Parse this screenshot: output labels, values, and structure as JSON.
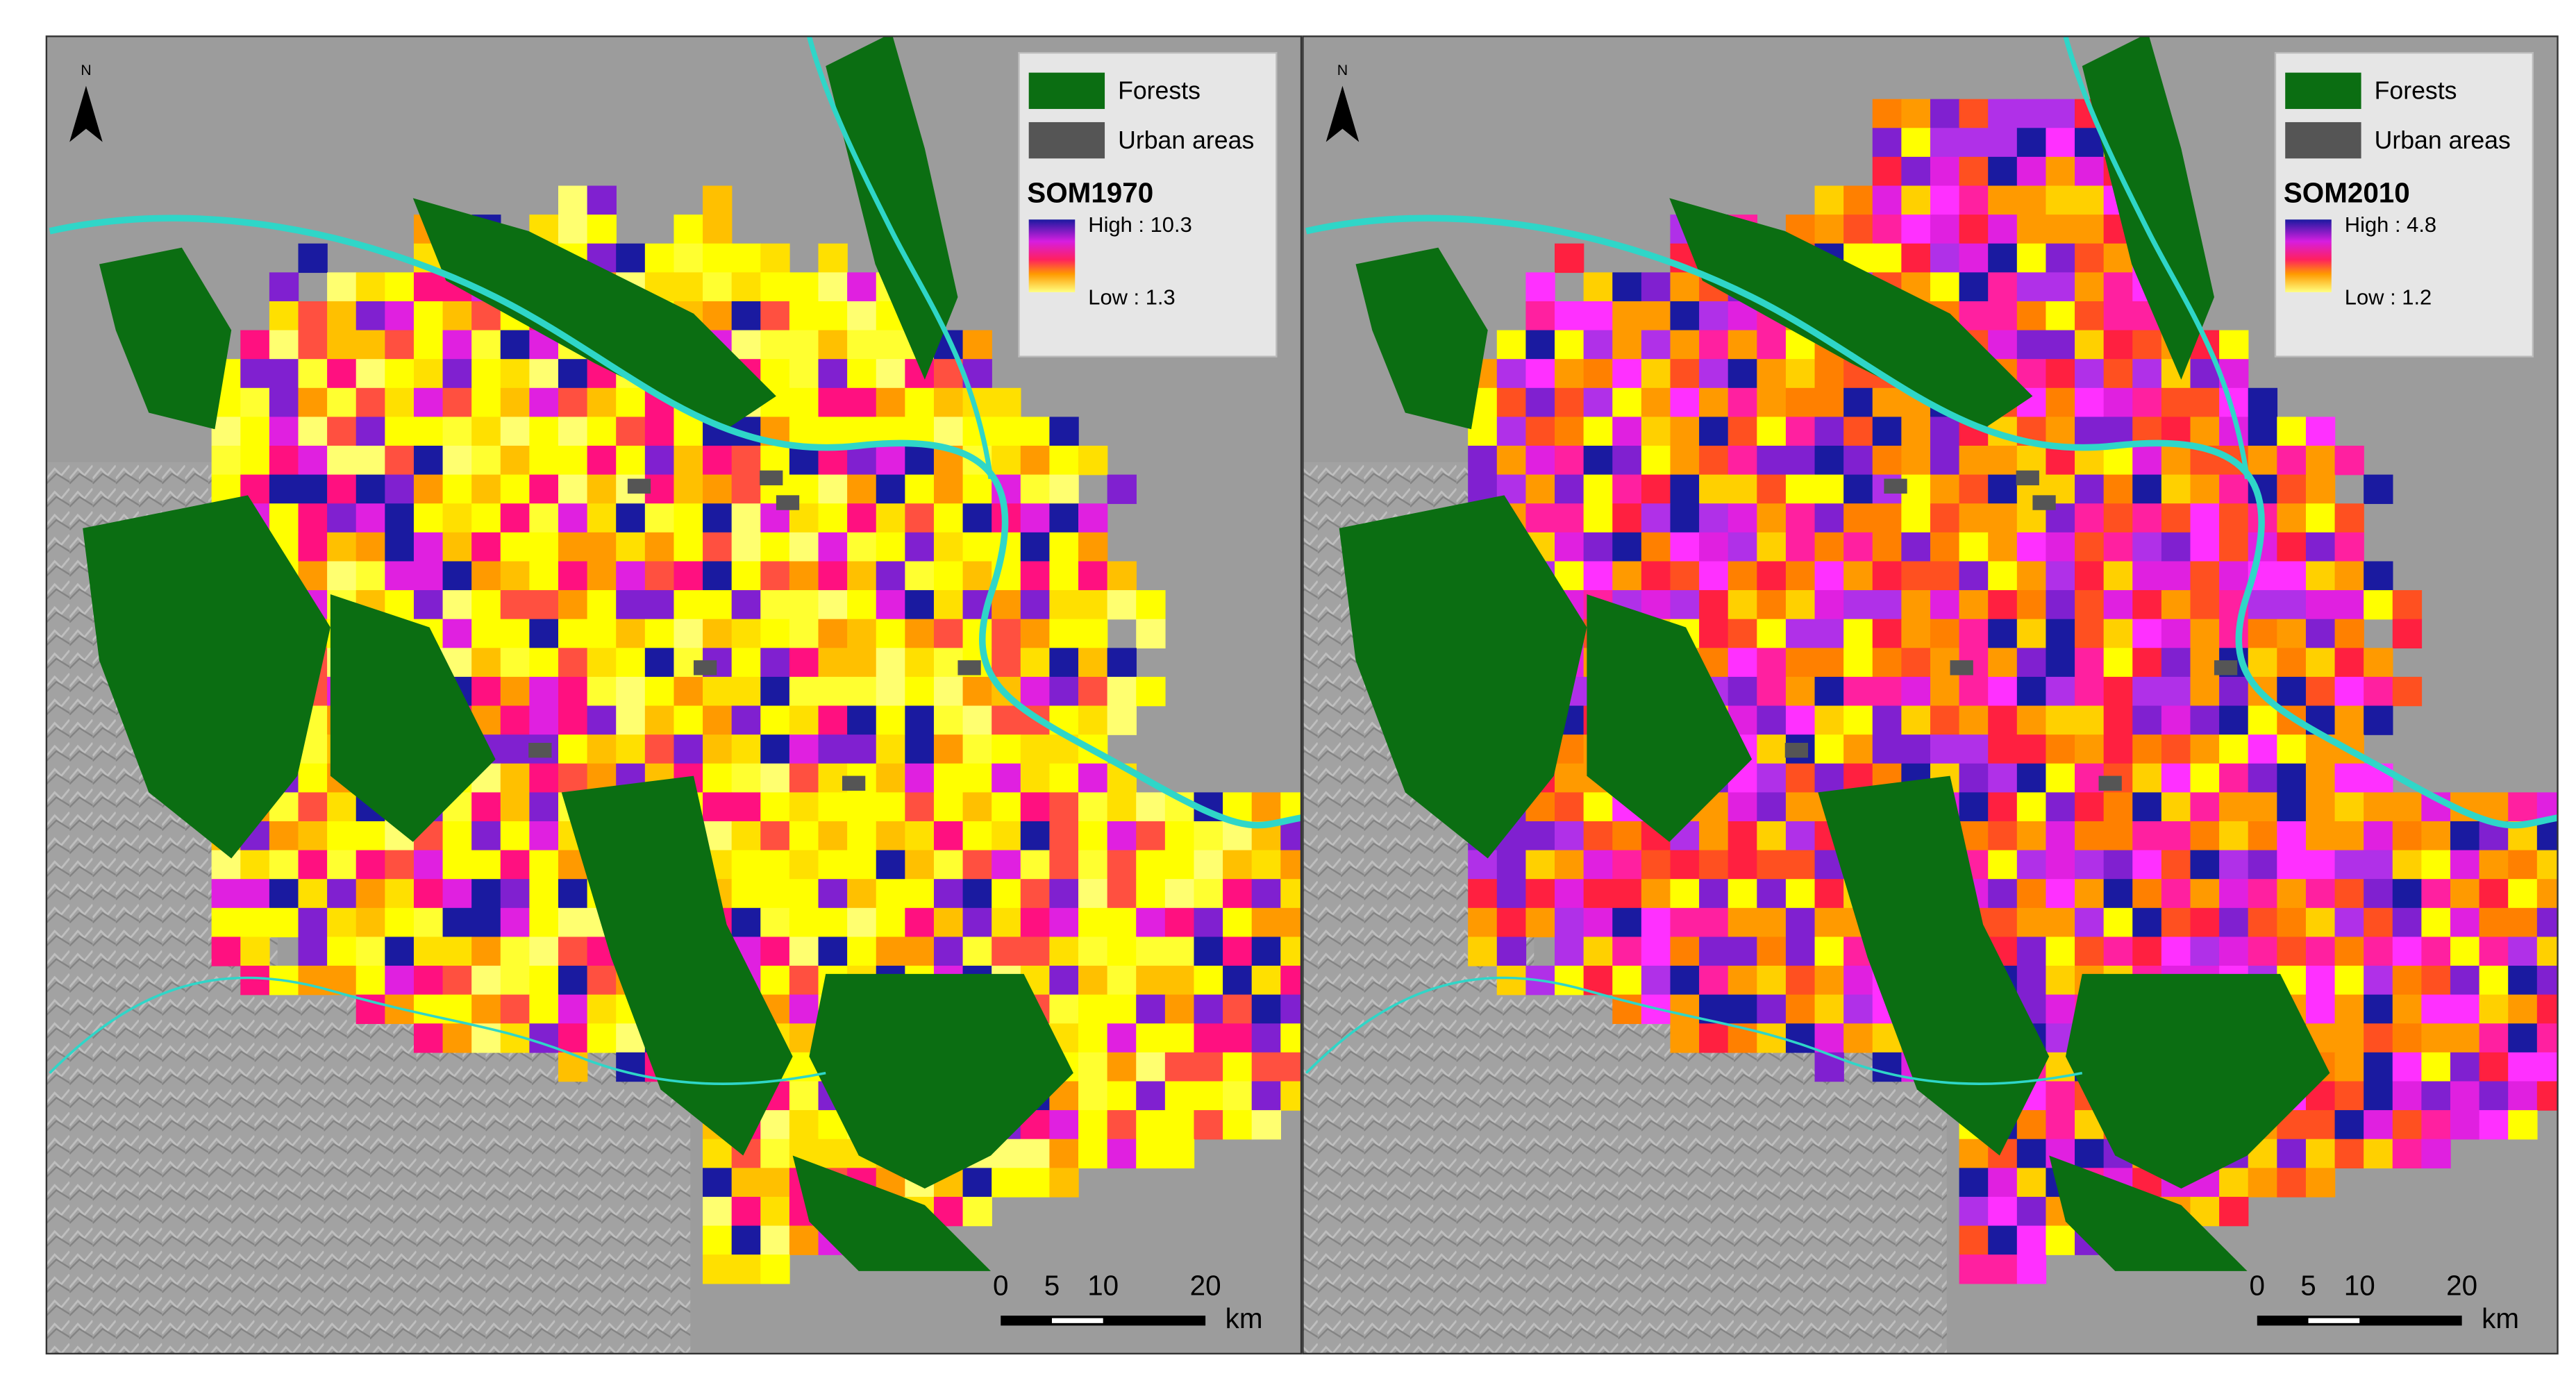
{
  "panels": [
    {
      "north": "N",
      "legend": {
        "forests": "Forests",
        "urban": "Urban areas",
        "title": "SOM1970",
        "high": "High : 10.3",
        "low": "Low : 1.3"
      },
      "scale_bar": {
        "ticks": [
          0,
          5,
          10,
          20
        ],
        "unit": "km"
      }
    },
    {
      "north": "N",
      "legend": {
        "forests": "Forests",
        "urban": "Urban areas",
        "title": "SOM2010",
        "high": "High : 4.8",
        "low": "Low : 1.2"
      },
      "scale_bar": {
        "ticks": [
          0,
          5,
          10,
          20
        ],
        "unit": "km"
      }
    }
  ]
}
